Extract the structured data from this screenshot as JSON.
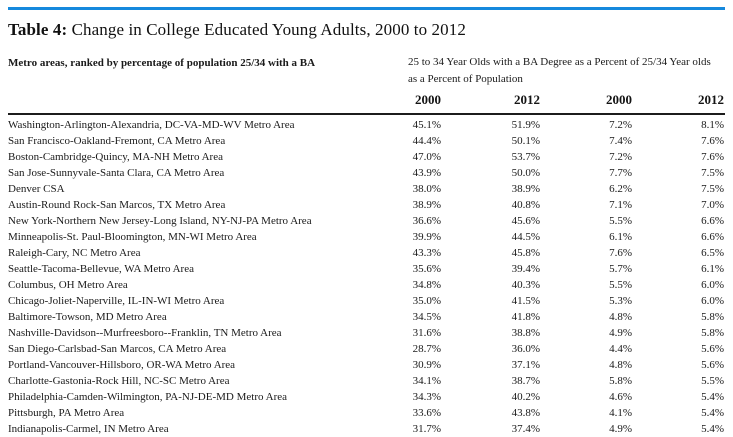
{
  "colors": {
    "accent_blue": "#1689dd",
    "rule_dark": "#1c1c1c",
    "text": "#1a1a1a"
  },
  "title": {
    "label": "Table 4:",
    "text": " Change in College Educated Young Adults, 2000 to 2012"
  },
  "subheader": {
    "left": "Metro areas, ranked by percentage of population 25/34 with a BA",
    "right_line1": "25 to 34 Year Olds with a BA Degree as a Percent of 25/34 Year olds",
    "right_line2": "as a Percent of Population"
  },
  "table": {
    "year_columns": [
      "2000",
      "2012",
      "2000",
      "2012"
    ],
    "rows": [
      {
        "metro": "Washington-Arlington-Alexandria, DC-VA-MD-WV Metro Area",
        "values": [
          "45.1%",
          "51.9%",
          "7.2%",
          "8.1%"
        ]
      },
      {
        "metro": "San Francisco-Oakland-Fremont, CA Metro Area",
        "values": [
          "44.4%",
          "50.1%",
          "7.4%",
          "7.6%"
        ]
      },
      {
        "metro": "Boston-Cambridge-Quincy, MA-NH Metro Area",
        "values": [
          "47.0%",
          "53.7%",
          "7.2%",
          "7.6%"
        ]
      },
      {
        "metro": "San Jose-Sunnyvale-Santa Clara, CA Metro Area",
        "values": [
          "43.9%",
          "50.0%",
          "7.7%",
          "7.5%"
        ]
      },
      {
        "metro": "Denver CSA",
        "values": [
          "38.0%",
          "38.9%",
          "6.2%",
          "7.5%"
        ]
      },
      {
        "metro": "Austin-Round Rock-San Marcos, TX Metro Area",
        "values": [
          "38.9%",
          "40.8%",
          "7.1%",
          "7.0%"
        ]
      },
      {
        "metro": "New York-Northern New Jersey-Long Island, NY-NJ-PA Metro Area",
        "values": [
          "36.6%",
          "45.6%",
          "5.5%",
          "6.6%"
        ]
      },
      {
        "metro": "Minneapolis-St. Paul-Bloomington, MN-WI Metro Area",
        "values": [
          "39.9%",
          "44.5%",
          "6.1%",
          "6.6%"
        ]
      },
      {
        "metro": "Raleigh-Cary, NC Metro Area",
        "values": [
          "43.3%",
          "45.8%",
          "7.6%",
          "6.5%"
        ]
      },
      {
        "metro": "Seattle-Tacoma-Bellevue, WA Metro Area",
        "values": [
          "35.6%",
          "39.4%",
          "5.7%",
          "6.1%"
        ]
      },
      {
        "metro": "Columbus, OH Metro Area",
        "values": [
          "34.8%",
          "40.3%",
          "5.5%",
          "6.0%"
        ]
      },
      {
        "metro": "Chicago-Joliet-Naperville, IL-IN-WI Metro Area",
        "values": [
          "35.0%",
          "41.5%",
          "5.3%",
          "6.0%"
        ]
      },
      {
        "metro": "Baltimore-Towson, MD Metro Area",
        "values": [
          "34.5%",
          "41.8%",
          "4.8%",
          "5.8%"
        ]
      },
      {
        "metro": "Nashville-Davidson--Murfreesboro--Franklin, TN Metro Area",
        "values": [
          "31.6%",
          "38.8%",
          "4.9%",
          "5.8%"
        ]
      },
      {
        "metro": "San Diego-Carlsbad-San Marcos, CA Metro Area",
        "values": [
          "28.7%",
          "36.0%",
          "4.4%",
          "5.6%"
        ]
      },
      {
        "metro": "Portland-Vancouver-Hillsboro, OR-WA Metro Area",
        "values": [
          "30.9%",
          "37.1%",
          "4.8%",
          "5.6%"
        ]
      },
      {
        "metro": "Charlotte-Gastonia-Rock Hill, NC-SC Metro Area",
        "values": [
          "34.1%",
          "38.7%",
          "5.8%",
          "5.5%"
        ]
      },
      {
        "metro": "Philadelphia-Camden-Wilmington, PA-NJ-DE-MD Metro Area",
        "values": [
          "34.3%",
          "40.2%",
          "4.6%",
          "5.4%"
        ]
      },
      {
        "metro": "Pittsburgh, PA Metro Area",
        "values": [
          "33.6%",
          "43.8%",
          "4.1%",
          "5.4%"
        ]
      },
      {
        "metro": "Indianapolis-Carmel, IN Metro Area",
        "values": [
          "31.7%",
          "37.4%",
          "4.9%",
          "5.4%"
        ]
      }
    ]
  }
}
